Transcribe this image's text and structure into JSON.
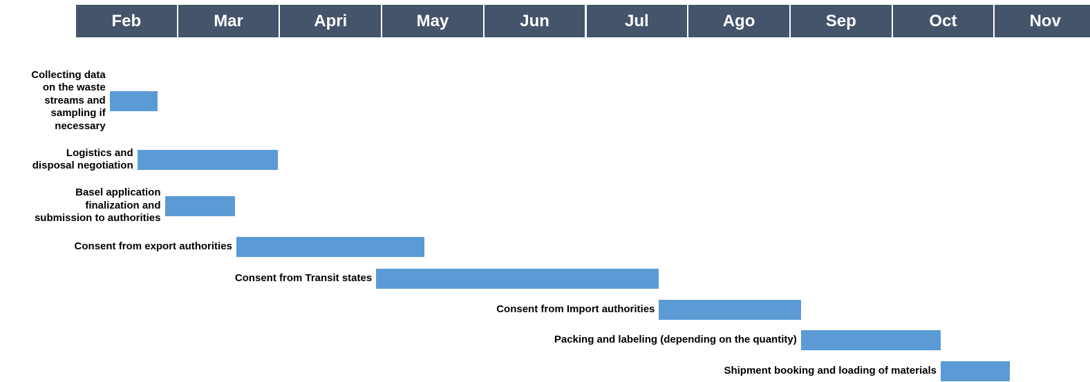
{
  "chart_data": {
    "type": "gantt",
    "title": "",
    "colors": {
      "header_background": "#44546a",
      "header_text": "#ffffff",
      "bar": "#5b9bd5",
      "label_text": "#000000"
    },
    "months": [
      "Feb",
      "Mar",
      "Apri",
      "May",
      "Jun",
      "Jul",
      "Ago",
      "Sep",
      "Oct",
      "Nov"
    ],
    "tasks": [
      {
        "label": "Collecting data\non the waste\nstreams and\nsampling if\nnecessary",
        "start": 0.33,
        "end": 0.8
      },
      {
        "label": "Logistics and\ndisposal negotiation",
        "start": 0.6,
        "end": 1.98
      },
      {
        "label": "Basel application\nfinalization and\nsubmission to authorities",
        "start": 0.87,
        "end": 1.56
      },
      {
        "label": "Consent from export authorities",
        "start": 1.57,
        "end": 3.41
      },
      {
        "label": "Consent from Transit states",
        "start": 2.94,
        "end": 5.71
      },
      {
        "label": "Consent from Import authorities",
        "start": 5.71,
        "end": 7.1
      },
      {
        "label": "Packing and labeling (depending on the quantity)",
        "start": 7.1,
        "end": 8.47
      },
      {
        "label": "Shipment booking and loading of materials",
        "start": 8.47,
        "end": 9.15
      }
    ]
  }
}
